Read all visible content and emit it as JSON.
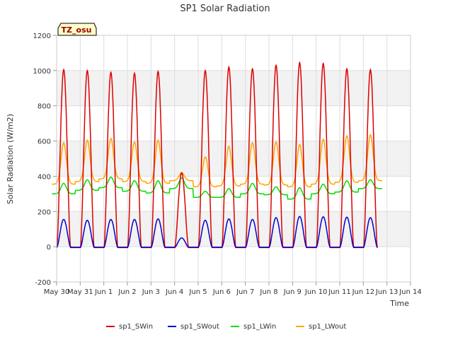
{
  "chart_data": {
    "type": "line",
    "title": "SP1 Solar Radiation",
    "xlabel": "Time",
    "ylabel": "Solar Radiation (W/m2)",
    "ylim": [
      -200,
      1200
    ],
    "yticks": [
      -200,
      0,
      200,
      400,
      600,
      800,
      1000,
      1200
    ],
    "xlim": [
      0,
      15
    ],
    "xticks": [
      {
        "x": 0,
        "label": "May 30"
      },
      {
        "x": 1,
        "label": "May 31"
      },
      {
        "x": 2,
        "label": "Jun 1"
      },
      {
        "x": 3,
        "label": "Jun 2"
      },
      {
        "x": 4,
        "label": "Jun 3"
      },
      {
        "x": 5,
        "label": "Jun 4"
      },
      {
        "x": 6,
        "label": "Jun 5"
      },
      {
        "x": 7,
        "label": "Jun 6"
      },
      {
        "x": 8,
        "label": "Jun 7"
      },
      {
        "x": 9,
        "label": "Jun 8"
      },
      {
        "x": 10,
        "label": "Jun 9"
      },
      {
        "x": 11,
        "label": "Jun 10"
      },
      {
        "x": 12,
        "label": "Jun 11"
      },
      {
        "x": 13,
        "label": "Jun 12"
      },
      {
        "x": 14,
        "label": "Jun 13"
      },
      {
        "x": 15,
        "label": "Jun 14"
      }
    ],
    "grid": true,
    "legend_position": "bottom",
    "annotation": {
      "text": "TZ_osu",
      "bg": "#ffffcc",
      "color": "#990000"
    },
    "days": [
      0.3,
      1.3,
      2.3,
      3.3,
      4.3,
      5.3,
      6.3,
      7.3,
      8.3,
      9.3,
      10.3,
      11.3,
      12.3,
      13.3
    ],
    "series": [
      {
        "name": "sp1_SWin",
        "color": "#dd0000",
        "daily_peak": [
          1005,
          1000,
          990,
          985,
          995,
          420,
          1000,
          1020,
          1010,
          1030,
          1045,
          1040,
          1010,
          1005
        ]
      },
      {
        "name": "sp1_SWout",
        "color": "#0000cc",
        "daily_peak": [
          155,
          150,
          155,
          155,
          158,
          50,
          150,
          158,
          155,
          165,
          172,
          170,
          168,
          165
        ]
      },
      {
        "name": "sp1_LWin",
        "color": "#00dd00",
        "daily_peak": [
          360,
          380,
          395,
          375,
          375,
          390,
          315,
          330,
          360,
          340,
          335,
          355,
          375,
          380
        ],
        "daily_min": [
          300,
          320,
          335,
          315,
          305,
          330,
          280,
          280,
          300,
          295,
          270,
          300,
          310,
          330
        ]
      },
      {
        "name": "sp1_LWout",
        "color": "#ffa500",
        "daily_peak": [
          590,
          605,
          615,
          595,
          605,
          420,
          510,
          570,
          590,
          595,
          580,
          610,
          630,
          635
        ],
        "daily_min": [
          355,
          370,
          385,
          370,
          360,
          375,
          340,
          345,
          355,
          350,
          340,
          355,
          365,
          375
        ]
      }
    ]
  }
}
